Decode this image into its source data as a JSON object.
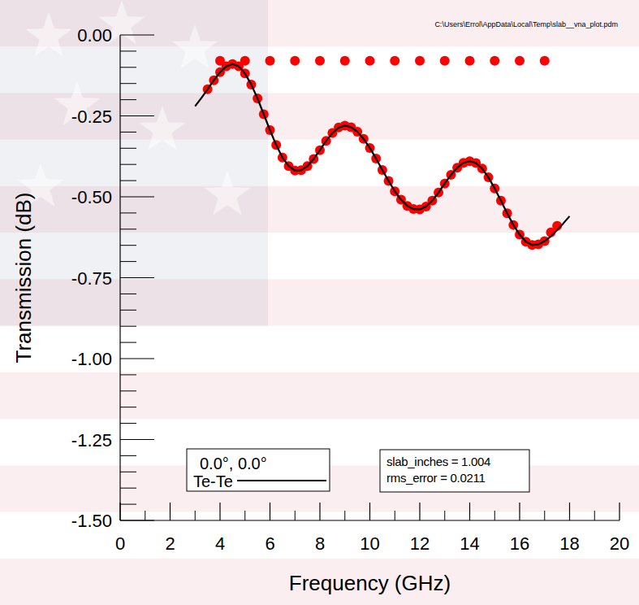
{
  "chart_data": {
    "type": "scatter",
    "subtitle": "C:\\Users\\Errol\\AppData\\Local\\Temp\\slab__vna_plot.pdm",
    "x_label": "Frequency (GHz)",
    "y_label": "Transmission (dB)",
    "legend_title": "0.0°, 0.0°",
    "legend": "lower left",
    "grid": false,
    "annotations": [
      "slab_inches = 1.004",
      "rms_error = 0.0211"
    ],
    "xlim": [
      0,
      20
    ],
    "xticks": [
      0,
      2,
      4,
      6,
      8,
      10,
      12,
      14,
      16,
      18,
      20
    ],
    "xticks_minor": [
      1,
      3,
      5,
      7,
      9,
      11,
      13,
      15,
      17,
      19
    ],
    "ylim": [
      -1.5,
      0
    ],
    "yticks": [
      {
        "value": 0,
        "label": "0.00"
      },
      -0.25,
      {
        "value": -0.5,
        "label": "-0.50"
      },
      -0.75,
      {
        "value": -1,
        "label": "-1.00"
      },
      -1.25,
      {
        "value": -1.5,
        "label": "-1.50"
      }
    ],
    "yticks_minor": [
      -0.05,
      -0.1,
      -0.15,
      -0.2,
      -0.3,
      -0.35,
      -0.4,
      -0.45,
      -0.55,
      -0.6,
      -0.65,
      -0.7,
      -0.8,
      -0.85,
      -0.9,
      -0.95,
      -1.05,
      -1.1,
      -1.15,
      -1.2,
      -1.3,
      -1.35,
      -1.4,
      -1.45
    ],
    "series": [
      {
        "type": "scatter",
        "color": "#ff0000",
        "marker": "circle",
        "x": [
          3.5,
          3.75,
          4.0,
          4.25,
          4.5,
          4.75,
          5.0,
          5.25,
          5.5,
          5.75,
          6.0,
          6.25,
          6.5,
          6.75,
          7.0,
          7.25,
          7.5,
          7.75,
          8.0,
          8.25,
          8.5,
          8.75,
          9.0,
          9.25,
          9.5,
          9.75,
          10.0,
          10.25,
          10.5,
          10.75,
          11.0,
          11.25,
          11.5,
          11.75,
          12.0,
          12.25,
          12.5,
          12.75,
          13.0,
          13.25,
          13.5,
          13.75,
          14.0,
          14.25,
          14.5,
          14.75,
          15.0,
          15.25,
          15.5,
          15.75,
          16.0,
          16.25,
          16.5,
          16.75,
          17.0,
          17.25,
          17.5
        ],
        "values": [
          -0.168,
          -0.14,
          -0.115,
          -0.097,
          -0.09,
          -0.097,
          -0.119,
          -0.153,
          -0.196,
          -0.245,
          -0.294,
          -0.34,
          -0.379,
          -0.405,
          -0.419,
          -0.418,
          -0.405,
          -0.383,
          -0.356,
          -0.327,
          -0.303,
          -0.286,
          -0.28,
          -0.285,
          -0.299,
          -0.321,
          -0.349,
          -0.382,
          -0.417,
          -0.451,
          -0.483,
          -0.509,
          -0.528,
          -0.538,
          -0.539,
          -0.53,
          -0.512,
          -0.487,
          -0.459,
          -0.432,
          -0.41,
          -0.395,
          -0.39,
          -0.396,
          -0.413,
          -0.44,
          -0.474,
          -0.512,
          -0.551,
          -0.587,
          -0.617,
          -0.639,
          -0.649,
          -0.647,
          -0.637,
          -0.61,
          -0.59
        ]
      },
      {
        "type": "scatter",
        "color": "#ff0000",
        "marker": "circle",
        "x": [
          4,
          5,
          6,
          7,
          8,
          9,
          10,
          11,
          12,
          13,
          14,
          15,
          16,
          17
        ],
        "values": [
          -0.08,
          -0.08,
          -0.08,
          -0.08,
          -0.08,
          -0.08,
          -0.08,
          -0.08,
          -0.08,
          -0.08,
          -0.08,
          -0.08,
          -0.08,
          -0.08
        ]
      },
      {
        "name": "Te-Te",
        "type": "line",
        "color": "#000000",
        "line_style": "solid",
        "x": [
          3.0,
          3.25,
          3.5,
          3.75,
          4.0,
          4.25,
          4.5,
          4.75,
          5.0,
          5.25,
          5.5,
          5.75,
          6.0,
          6.25,
          6.5,
          6.75,
          7.0,
          7.25,
          7.5,
          7.75,
          8.0,
          8.25,
          8.5,
          8.75,
          9.0,
          9.25,
          9.5,
          9.75,
          10.0,
          10.25,
          10.5,
          10.75,
          11.0,
          11.25,
          11.5,
          11.75,
          12.0,
          12.25,
          12.5,
          12.75,
          13.0,
          13.25,
          13.5,
          13.75,
          14.0,
          14.25,
          14.5,
          14.75,
          15.0,
          15.25,
          15.5,
          15.75,
          16.0,
          16.25,
          16.5,
          16.75,
          17.0,
          17.25,
          17.5,
          17.75,
          18.0
        ],
        "values": [
          -0.22,
          -0.195,
          -0.168,
          -0.14,
          -0.115,
          -0.097,
          -0.09,
          -0.097,
          -0.119,
          -0.153,
          -0.196,
          -0.245,
          -0.294,
          -0.34,
          -0.379,
          -0.405,
          -0.419,
          -0.418,
          -0.405,
          -0.383,
          -0.356,
          -0.327,
          -0.303,
          -0.286,
          -0.28,
          -0.285,
          -0.299,
          -0.321,
          -0.349,
          -0.382,
          -0.417,
          -0.451,
          -0.483,
          -0.509,
          -0.528,
          -0.538,
          -0.539,
          -0.53,
          -0.512,
          -0.487,
          -0.459,
          -0.432,
          -0.41,
          -0.395,
          -0.39,
          -0.396,
          -0.413,
          -0.44,
          -0.474,
          -0.512,
          -0.551,
          -0.587,
          -0.617,
          -0.639,
          -0.649,
          -0.647,
          -0.637,
          -0.622,
          -0.603,
          -0.582,
          -0.56
        ]
      }
    ]
  }
}
